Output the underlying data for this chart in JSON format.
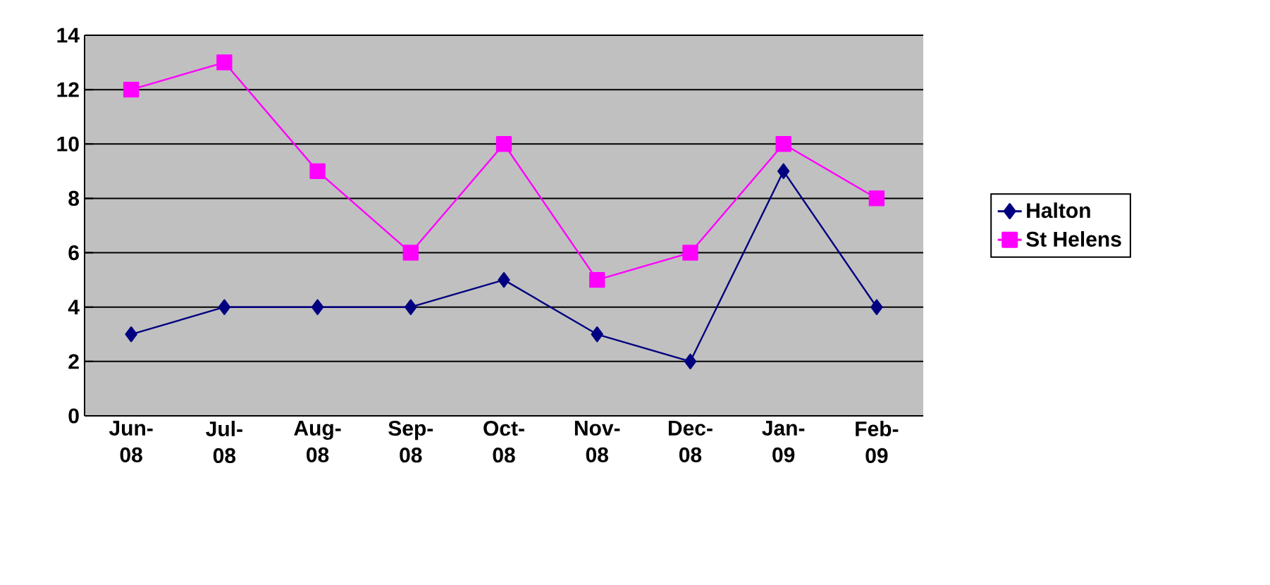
{
  "chart_data": {
    "type": "line",
    "categories": [
      "Jun-08",
      "Jul-08",
      "Aug-08",
      "Sep-08",
      "Oct-08",
      "Nov-08",
      "Dec-08",
      "Jan-09",
      "Feb-09"
    ],
    "series": [
      {
        "name": "Halton",
        "color": "#000080",
        "marker": "diamond",
        "values": [
          3,
          4,
          4,
          4,
          5,
          3,
          2,
          9,
          4
        ]
      },
      {
        "name": "St Helens",
        "color": "#ff00ff",
        "marker": "square",
        "values": [
          12,
          13,
          9,
          6,
          10,
          5,
          6,
          10,
          8
        ]
      }
    ],
    "ylim": [
      0,
      14
    ],
    "yticks": [
      0,
      2,
      4,
      6,
      8,
      10,
      12,
      14
    ],
    "grid": "y",
    "legend": "right",
    "line_style": "solid"
  }
}
